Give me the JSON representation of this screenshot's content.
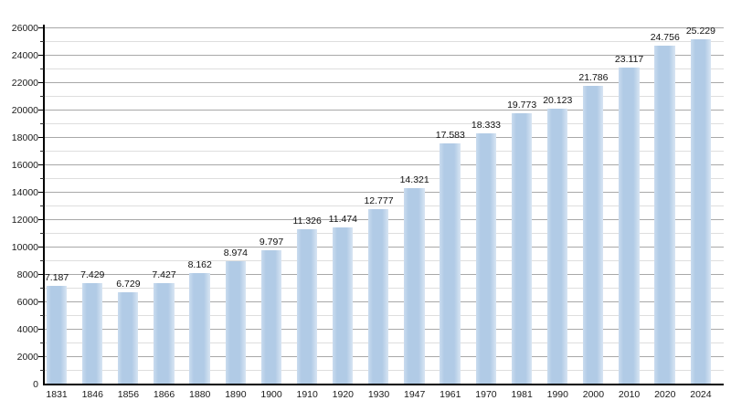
{
  "chart_data": {
    "type": "bar",
    "title": "",
    "xlabel": "",
    "ylabel": "",
    "categories": [
      "1831",
      "1846",
      "1856",
      "1866",
      "1880",
      "1890",
      "1900",
      "1910",
      "1920",
      "1930",
      "1947",
      "1961",
      "1970",
      "1981",
      "1990",
      "2000",
      "2010",
      "2020",
      "2024"
    ],
    "values": [
      7187,
      7429,
      6729,
      7427,
      8162,
      8974,
      9797,
      11326,
      11474,
      12777,
      14321,
      17583,
      18333,
      19773,
      20123,
      21786,
      23117,
      24756,
      25229
    ],
    "value_labels": [
      "7.187",
      "7.429",
      "6.729",
      "7.427",
      "8.162",
      "8.974",
      "9.797",
      "11.326",
      "11.474",
      "12.777",
      "14.321",
      "17.583",
      "18.333",
      "19.773",
      "20.123",
      "21.786",
      "23.117",
      "24.756",
      "25.229"
    ],
    "ylim": [
      0,
      26000
    ],
    "y_major_step": 2000,
    "y_minor_step": 1000,
    "y_tick_labels": [
      "0",
      "2000",
      "4000",
      "6000",
      "8000",
      "10000",
      "12000",
      "14000",
      "16000",
      "18000",
      "20000",
      "22000",
      "24000",
      "26000"
    ],
    "grid": true,
    "legend": false,
    "colors": {
      "bar": "#b1cbe6",
      "bar_edge": "#d8e5f3",
      "grid_major": "#a8a8a8",
      "grid_minor": "#dedede",
      "axis": "#000000",
      "label": "#1a1a1a",
      "background": "#ffffff"
    }
  }
}
